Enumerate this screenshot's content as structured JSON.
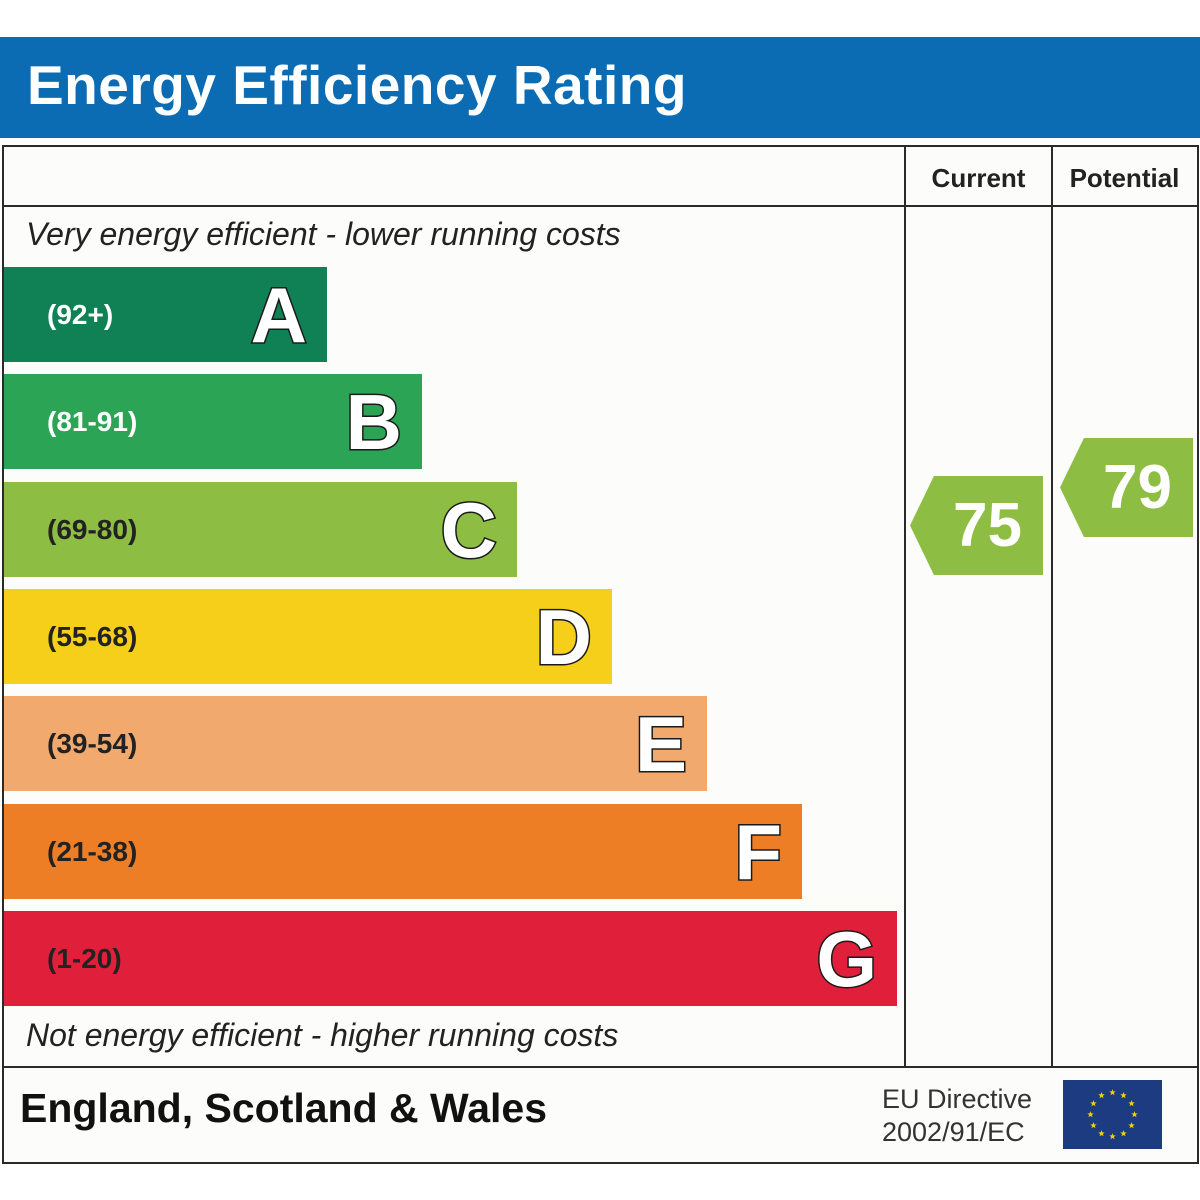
{
  "header": {
    "title": "Energy Efficiency Rating"
  },
  "columns": {
    "current": "Current",
    "potential": "Potential"
  },
  "captions": {
    "top": "Very energy efficient - lower running costs",
    "bottom": "Not energy efficient - higher running costs"
  },
  "footer": {
    "region": "England, Scotland & Wales",
    "directive_line1": "EU Directive",
    "directive_line2": "2002/91/EC",
    "flag_icon": "eu-flag-icon"
  },
  "chart_data": {
    "type": "bar",
    "title": "Energy Efficiency Rating",
    "orientation": "horizontal",
    "categories": [
      "A",
      "B",
      "C",
      "D",
      "E",
      "F",
      "G"
    ],
    "bands": [
      {
        "letter": "A",
        "range": "(92+)",
        "min": 92,
        "max": 100,
        "color": "#0f8155",
        "text_color": "#ffffff"
      },
      {
        "letter": "B",
        "range": "(81-91)",
        "min": 81,
        "max": 91,
        "color": "#2ca456",
        "text_color": "#ffffff"
      },
      {
        "letter": "C",
        "range": "(69-80)",
        "min": 69,
        "max": 80,
        "color": "#8dbd43",
        "text_color": "#222222"
      },
      {
        "letter": "D",
        "range": "(55-68)",
        "min": 55,
        "max": 68,
        "color": "#f5cf19",
        "text_color": "#222222"
      },
      {
        "letter": "E",
        "range": "(39-54)",
        "min": 39,
        "max": 54,
        "color": "#f2a96d",
        "text_color": "#222222"
      },
      {
        "letter": "F",
        "range": "(21-38)",
        "min": 21,
        "max": 38,
        "color": "#ed7e26",
        "text_color": "#222222"
      },
      {
        "letter": "G",
        "range": "(1-20)",
        "min": 1,
        "max": 20,
        "color": "#e0203a",
        "text_color": "#222222"
      }
    ],
    "relative_bar_length": [
      1,
      2,
      3,
      4,
      5,
      6,
      7
    ],
    "current": {
      "label": "Current",
      "value": 75,
      "band": "C",
      "color": "#8dbd43"
    },
    "potential": {
      "label": "Potential",
      "value": 79,
      "band": "C",
      "color": "#8dbd43"
    },
    "xlabel": "",
    "ylabel": "",
    "legend": "none"
  },
  "colors": {
    "header_blue": "#0b6cb4",
    "eu_flag_blue": "#1d3b80",
    "eu_star_yellow": "#f5d000"
  }
}
